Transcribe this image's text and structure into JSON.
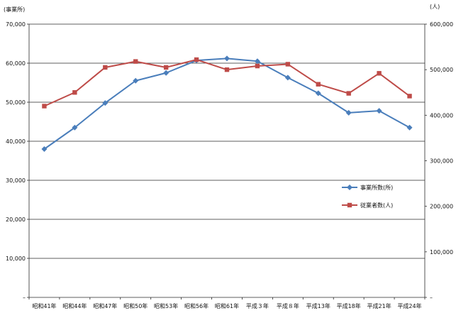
{
  "chart_data": {
    "type": "line",
    "categories": [
      "昭和41年",
      "昭和44年",
      "昭和47年",
      "昭和50年",
      "昭和53年",
      "昭和56年",
      "昭和61年",
      "平成３年",
      "平成８年",
      "平成13年",
      "平成18年",
      "平成21年",
      "平成24年"
    ],
    "left_axis": {
      "unit_label": "(事業所)",
      "ylim": [
        0,
        70000
      ],
      "ticks": [
        0,
        10000,
        20000,
        30000,
        40000,
        50000,
        60000,
        70000
      ],
      "tick_labels": [
        "–",
        "10,000",
        "20,000",
        "30,000",
        "40,000",
        "50,000",
        "60,000",
        "70,000"
      ]
    },
    "right_axis": {
      "unit_label": "(人)",
      "ylim": [
        0,
        600000
      ],
      "ticks": [
        0,
        100000,
        200000,
        300000,
        400000,
        500000,
        600000
      ],
      "tick_labels": [
        "–",
        "100,000",
        "200,000",
        "300,000",
        "400,000",
        "500,000",
        "600,000"
      ]
    },
    "grid": true,
    "legend_position": "middle-right",
    "series": [
      {
        "name": "事業所数(所)",
        "axis": "left",
        "color": "#4a7ebb",
        "marker": "diamond",
        "values": [
          38000,
          43500,
          49800,
          55500,
          57500,
          60700,
          61200,
          60500,
          56300,
          52300,
          47300,
          47800,
          43500
        ]
      },
      {
        "name": "従業者数(人)",
        "axis": "right",
        "color": "#be4b48",
        "marker": "square",
        "values": [
          420000,
          450000,
          505000,
          518000,
          505000,
          522000,
          500000,
          508000,
          512000,
          468000,
          448000,
          492000,
          442000
        ]
      }
    ]
  }
}
